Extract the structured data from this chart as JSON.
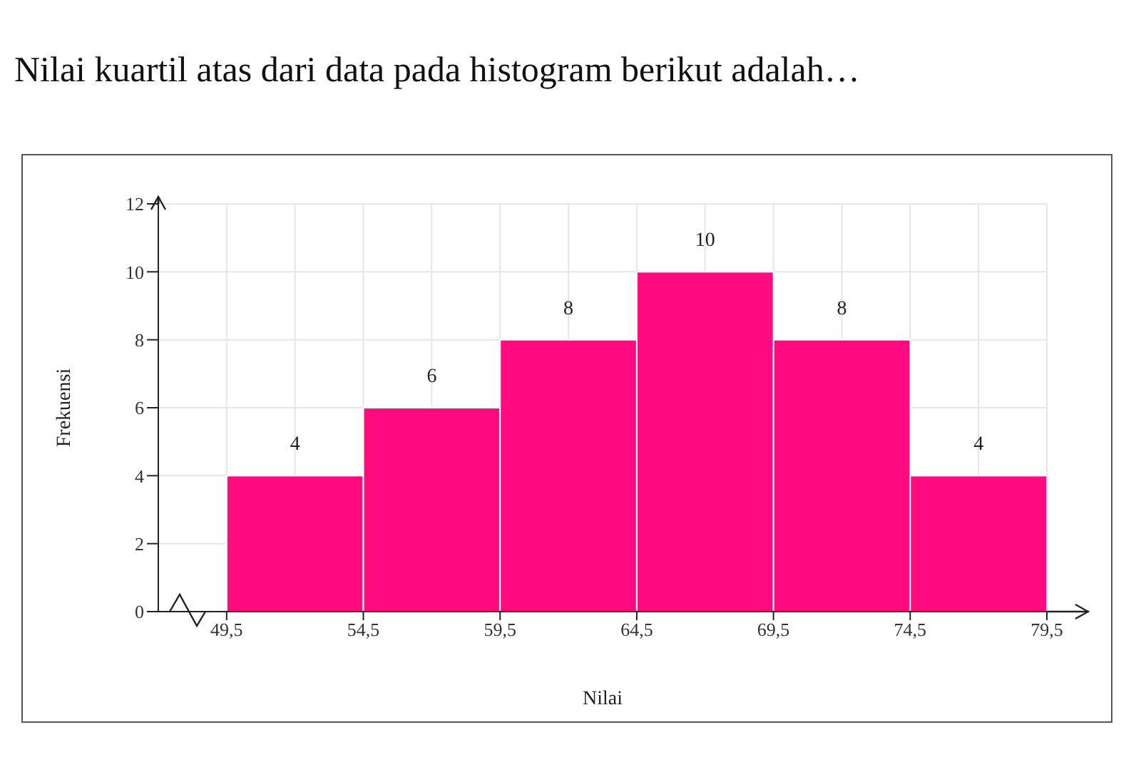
{
  "chart_data": {
    "type": "histogram",
    "title": "Nilai kuartil atas dari data pada histogram berikut adalah…",
    "xlabel": "Nilai",
    "ylabel": "Frekuensi",
    "bins": [
      49.5,
      54.5,
      59.5,
      64.5,
      69.5,
      74.5,
      79.5
    ],
    "values": [
      4,
      6,
      8,
      10,
      8,
      4
    ],
    "color": "#ff0a7f",
    "xlim": [
      47,
      79.5
    ],
    "xticks": [
      {
        "value": 49.5,
        "label": "49,5"
      },
      {
        "value": 54.5,
        "label": "54,5"
      },
      {
        "value": 59.5,
        "label": "59,5"
      },
      {
        "value": 64.5,
        "label": "64,5"
      },
      {
        "value": 69.5,
        "label": "69,5"
      },
      {
        "value": 74.5,
        "label": "74,5"
      },
      {
        "value": 79.5,
        "label": "79,5"
      }
    ],
    "ylim": [
      0,
      12
    ],
    "yticks": [
      0,
      2,
      4,
      6,
      8,
      10,
      12
    ],
    "grid": true,
    "data_labels": true
  }
}
